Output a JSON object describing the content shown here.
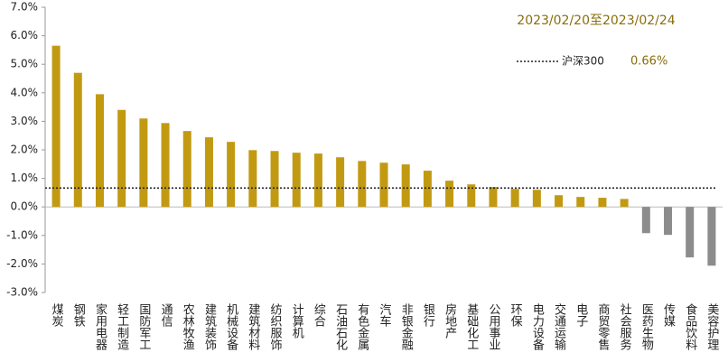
{
  "chart_data": {
    "type": "bar",
    "subtitle": "2023/02/20至2023/02/24",
    "categories": [
      "煤炭",
      "钢铁",
      "家用电器",
      "轻工制造",
      "国防军工",
      "通信",
      "农林牧渔",
      "建筑装饰",
      "机械设备",
      "建筑材料",
      "纺织服饰",
      "计算机",
      "综合",
      "石油石化",
      "有色金属",
      "汽车",
      "非银金融",
      "银行",
      "房地产",
      "基础化工",
      "公用事业",
      "环保",
      "电力设备",
      "交通运输",
      "电子",
      "商贸零售",
      "社会服务",
      "医药生物",
      "传媒",
      "食品饮料",
      "美容护理"
    ],
    "values": [
      5.65,
      4.7,
      3.95,
      3.4,
      3.1,
      2.94,
      2.66,
      2.44,
      2.28,
      1.99,
      1.96,
      1.9,
      1.87,
      1.74,
      1.61,
      1.55,
      1.49,
      1.27,
      0.92,
      0.79,
      0.7,
      0.63,
      0.6,
      0.41,
      0.35,
      0.32,
      0.28,
      -0.92,
      -0.98,
      -1.77,
      -2.06
    ],
    "colors": {
      "positive": "#c29a12",
      "negative": "#8c8c8c"
    },
    "reference": {
      "name": "沪深300",
      "value": 0.66,
      "value_label": "0.66%",
      "color": "#222222"
    },
    "ylim": [
      -3,
      7
    ],
    "yticks": [
      {
        "value": -3,
        "label": "-3.0%"
      },
      {
        "value": -2,
        "label": "-2.0%"
      },
      {
        "value": -1,
        "label": "-1.0%"
      },
      {
        "value": 0,
        "label": "0.0%"
      },
      {
        "value": 1,
        "label": "1.0%"
      },
      {
        "value": 2,
        "label": "2.0%"
      },
      {
        "value": 3,
        "label": "3.0%"
      },
      {
        "value": 4,
        "label": "4.0%"
      },
      {
        "value": 5,
        "label": "5.0%"
      },
      {
        "value": 6,
        "label": "6.0%"
      },
      {
        "value": 7,
        "label": "7.0%"
      }
    ],
    "grid": false
  }
}
